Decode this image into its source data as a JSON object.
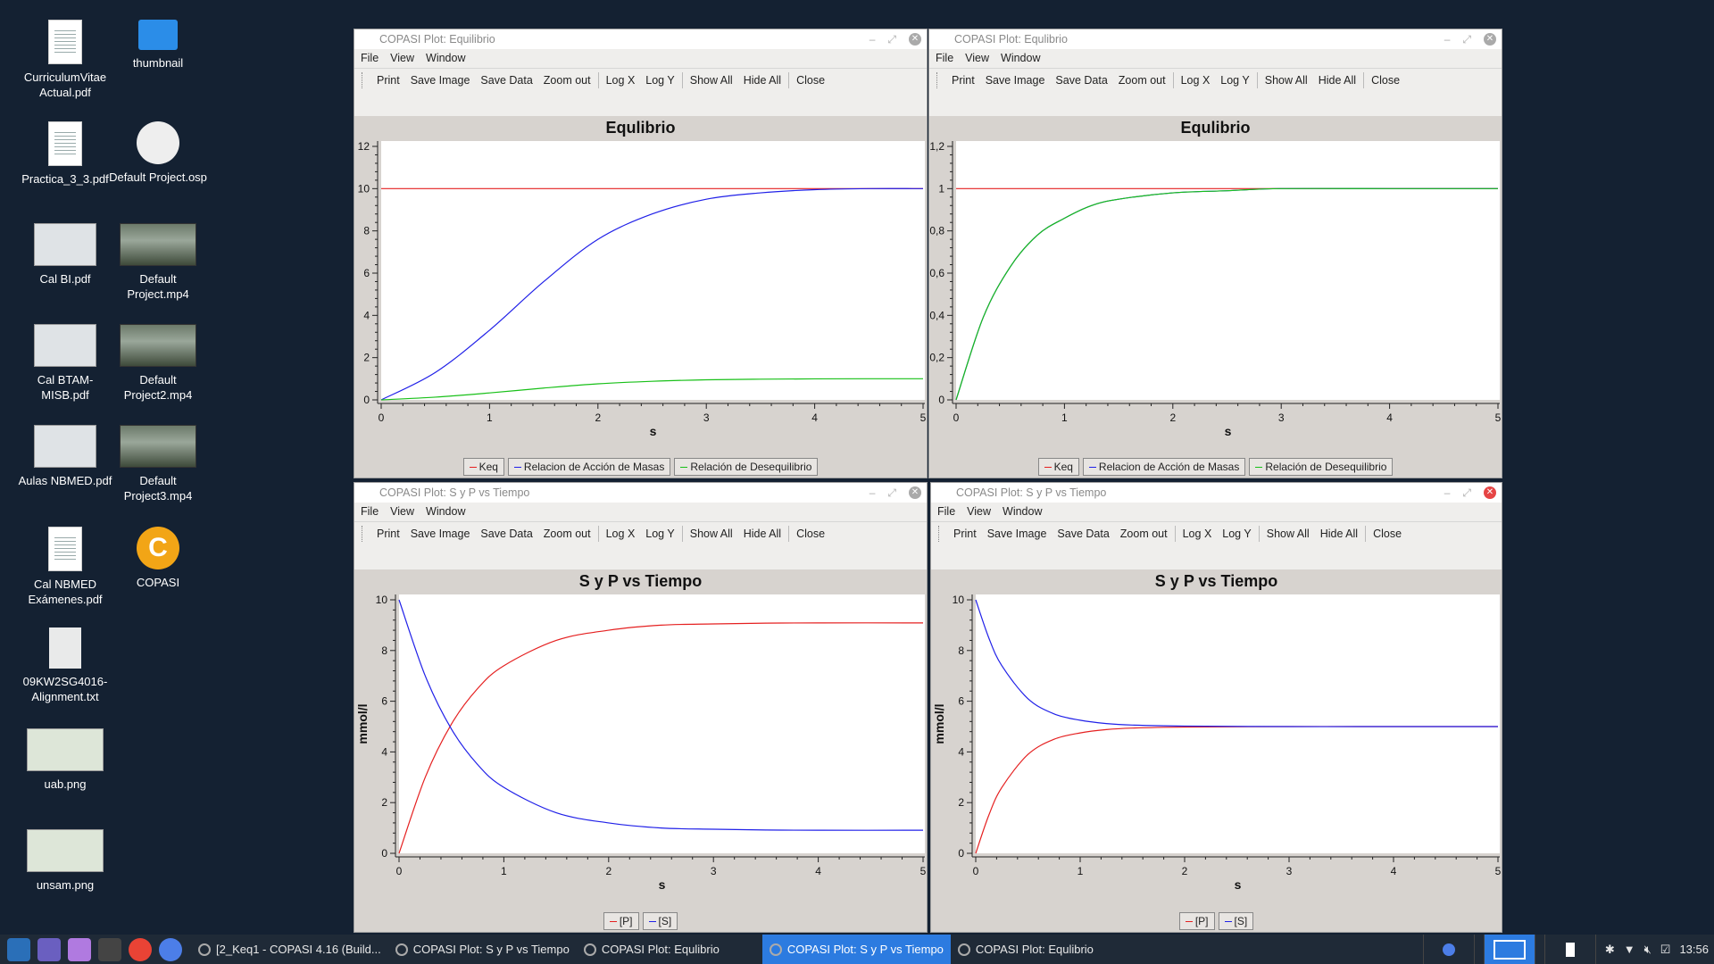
{
  "desktop": {
    "icons": [
      {
        "label": "CurriculumVitae Actual.pdf",
        "icon": "pdf-document-icon"
      },
      {
        "label": "thumbnail",
        "icon": "folder-icon"
      },
      {
        "label": "Practica_3_3.pdf",
        "icon": "pdf-document-icon"
      },
      {
        "label": "Default Project.osp",
        "icon": "osp-project-icon"
      },
      {
        "label": "Cal BI.pdf",
        "icon": "pdf-document-icon"
      },
      {
        "label": "Default Project.mp4",
        "icon": "video-thumbnail-icon"
      },
      {
        "label": "Cal BTAM-MISB.pdf",
        "icon": "pdf-document-icon"
      },
      {
        "label": "Default Project2.mp4",
        "icon": "video-thumbnail-icon"
      },
      {
        "label": "Aulas NBMED.pdf",
        "icon": "pdf-document-icon"
      },
      {
        "label": "Default Project3.mp4",
        "icon": "video-thumbnail-icon"
      },
      {
        "label": "Cal NBMED Exámenes.pdf",
        "icon": "pdf-document-icon"
      },
      {
        "label": "COPASI",
        "icon": "copasi-app-icon"
      },
      {
        "label": "09KW2SG4016-Alignment.txt",
        "icon": "text-file-icon"
      },
      {
        "label": "uab.png",
        "icon": "image-thumbnail-icon"
      },
      {
        "label": "unsam.png",
        "icon": "image-thumbnail-icon"
      }
    ],
    "copasi_letter": "C"
  },
  "menu": {
    "file": "File",
    "view": "View",
    "window": "Window"
  },
  "toolbar": {
    "print": "Print",
    "save_image": "Save Image",
    "save_data": "Save Data",
    "zoom_out": "Zoom out",
    "log_x": "Log X",
    "log_y": "Log Y",
    "show_all": "Show All",
    "hide_all": "Hide All",
    "close": "Close"
  },
  "windows": {
    "w1": {
      "title": "COPASI Plot: Equilibrio",
      "plot_title": "Equlibrio",
      "legend": [
        "Keq",
        "Relacion de Acción de Masas",
        "Relación de Desequilibrio"
      ]
    },
    "w2": {
      "title": "COPASI Plot: Equlibrio",
      "plot_title": "Equlibrio",
      "legend": [
        "Keq",
        "Relacion de Acción de Masas",
        "Relación de Desequilibrio"
      ]
    },
    "w3": {
      "title": "COPASI Plot: S y P vs Tiempo",
      "plot_title": "S y P vs Tiempo",
      "legend": [
        "[P]",
        "[S]"
      ]
    },
    "w4": {
      "title": "COPASI Plot: S y P vs Tiempo",
      "plot_title": "S y P vs Tiempo",
      "legend": [
        "[P]",
        "[S]"
      ]
    }
  },
  "colors": {
    "red": "#e52020",
    "blue": "#2020e8",
    "green": "#18c018"
  },
  "chart_data": [
    {
      "type": "line",
      "title": "Equlibrio",
      "xlabel": "s",
      "ylabel": "",
      "xlim": [
        0,
        5
      ],
      "ylim": [
        0,
        12
      ],
      "x_ticks": [
        "0",
        "1",
        "2",
        "3",
        "4",
        "5"
      ],
      "y_ticks": [
        "0",
        "2",
        "4",
        "6",
        "8",
        "10",
        "12"
      ],
      "x": [
        0,
        0.5,
        1,
        1.5,
        2,
        2.5,
        3,
        3.5,
        4,
        4.5,
        5
      ],
      "series": [
        {
          "name": "Keq",
          "color": "#e52020",
          "values": [
            10,
            10,
            10,
            10,
            10,
            10,
            10,
            10,
            10,
            10,
            10
          ]
        },
        {
          "name": "Relacion de Acción de Masas",
          "color": "#2020e8",
          "values": [
            0,
            1.3,
            3.3,
            5.6,
            7.6,
            8.8,
            9.5,
            9.8,
            9.95,
            10,
            10
          ]
        },
        {
          "name": "Relación de Desequilibrio",
          "color": "#18c018",
          "values": [
            0,
            0.13,
            0.33,
            0.56,
            0.76,
            0.88,
            0.95,
            0.98,
            0.995,
            1.0,
            1.0
          ]
        }
      ]
    },
    {
      "type": "line",
      "title": "Equlibrio",
      "xlabel": "s",
      "ylabel": "",
      "xlim": [
        0,
        5
      ],
      "ylim": [
        0,
        1.2
      ],
      "x_ticks": [
        "0",
        "1",
        "2",
        "3",
        "4",
        "5"
      ],
      "y_ticks": [
        "0",
        "0,2",
        "0,4",
        "0,6",
        "0,8",
        "1",
        "1,2"
      ],
      "x": [
        0,
        0.25,
        0.5,
        0.75,
        1,
        1.25,
        1.5,
        2,
        2.5,
        3,
        4,
        5
      ],
      "series": [
        {
          "name": "Keq",
          "color": "#e52020",
          "values": [
            1,
            1,
            1,
            1,
            1,
            1,
            1,
            1,
            1,
            1,
            1,
            1
          ]
        },
        {
          "name": "Relacion de Acción de Masas",
          "color": "#2020e8",
          "values": [
            0,
            0.39,
            0.63,
            0.78,
            0.86,
            0.92,
            0.95,
            0.98,
            0.99,
            1,
            1,
            1
          ]
        },
        {
          "name": "Relación de Desequilibrio",
          "color": "#18c018",
          "values": [
            0,
            0.39,
            0.63,
            0.78,
            0.86,
            0.92,
            0.95,
            0.98,
            0.99,
            1,
            1,
            1
          ]
        }
      ]
    },
    {
      "type": "line",
      "title": "S y P vs Tiempo",
      "xlabel": "s",
      "ylabel": "mmol/l",
      "xlim": [
        0,
        5
      ],
      "ylim": [
        0,
        10
      ],
      "x_ticks": [
        "0",
        "1",
        "2",
        "3",
        "4",
        "5"
      ],
      "y_ticks": [
        "0",
        "2",
        "4",
        "6",
        "8",
        "10"
      ],
      "x": [
        0,
        0.25,
        0.5,
        0.75,
        1,
        1.5,
        2,
        2.5,
        3,
        3.5,
        4,
        5
      ],
      "series": [
        {
          "name": "[P]",
          "color": "#e52020",
          "values": [
            0,
            3.0,
            5.1,
            6.5,
            7.4,
            8.4,
            8.8,
            9.0,
            9.05,
            9.08,
            9.09,
            9.09
          ]
        },
        {
          "name": "[S]",
          "color": "#2020e8",
          "values": [
            10,
            7.0,
            4.9,
            3.5,
            2.6,
            1.6,
            1.2,
            1.0,
            0.95,
            0.92,
            0.91,
            0.91
          ]
        }
      ]
    },
    {
      "type": "line",
      "title": "S y P vs Tiempo",
      "xlabel": "s",
      "ylabel": "mmol/l",
      "xlim": [
        0,
        5
      ],
      "ylim": [
        0,
        10
      ],
      "x_ticks": [
        "0",
        "1",
        "2",
        "3",
        "4",
        "5"
      ],
      "y_ticks": [
        "0",
        "2",
        "4",
        "6",
        "8",
        "10"
      ],
      "x": [
        0,
        0.125,
        0.25,
        0.5,
        0.75,
        1,
        1.25,
        1.5,
        2,
        3,
        4,
        5
      ],
      "series": [
        {
          "name": "[P]",
          "color": "#e52020",
          "values": [
            0,
            1.5,
            2.6,
            3.9,
            4.5,
            4.75,
            4.88,
            4.94,
            4.98,
            5,
            5,
            5
          ]
        },
        {
          "name": "[S]",
          "color": "#2020e8",
          "values": [
            10,
            8.5,
            7.4,
            6.1,
            5.5,
            5.25,
            5.12,
            5.06,
            5.02,
            5,
            5,
            5
          ]
        }
      ]
    }
  ],
  "taskbar": {
    "tasks": [
      "[2_Keq1 - COPASI 4.16 (Build...",
      "COPASI Plot: S y P vs Tiempo",
      "COPASI Plot: Equlibrio",
      "COPASI Plot: S y P vs Tiempo",
      "COPASI Plot: Equlibrio"
    ],
    "clock": "13:56"
  }
}
